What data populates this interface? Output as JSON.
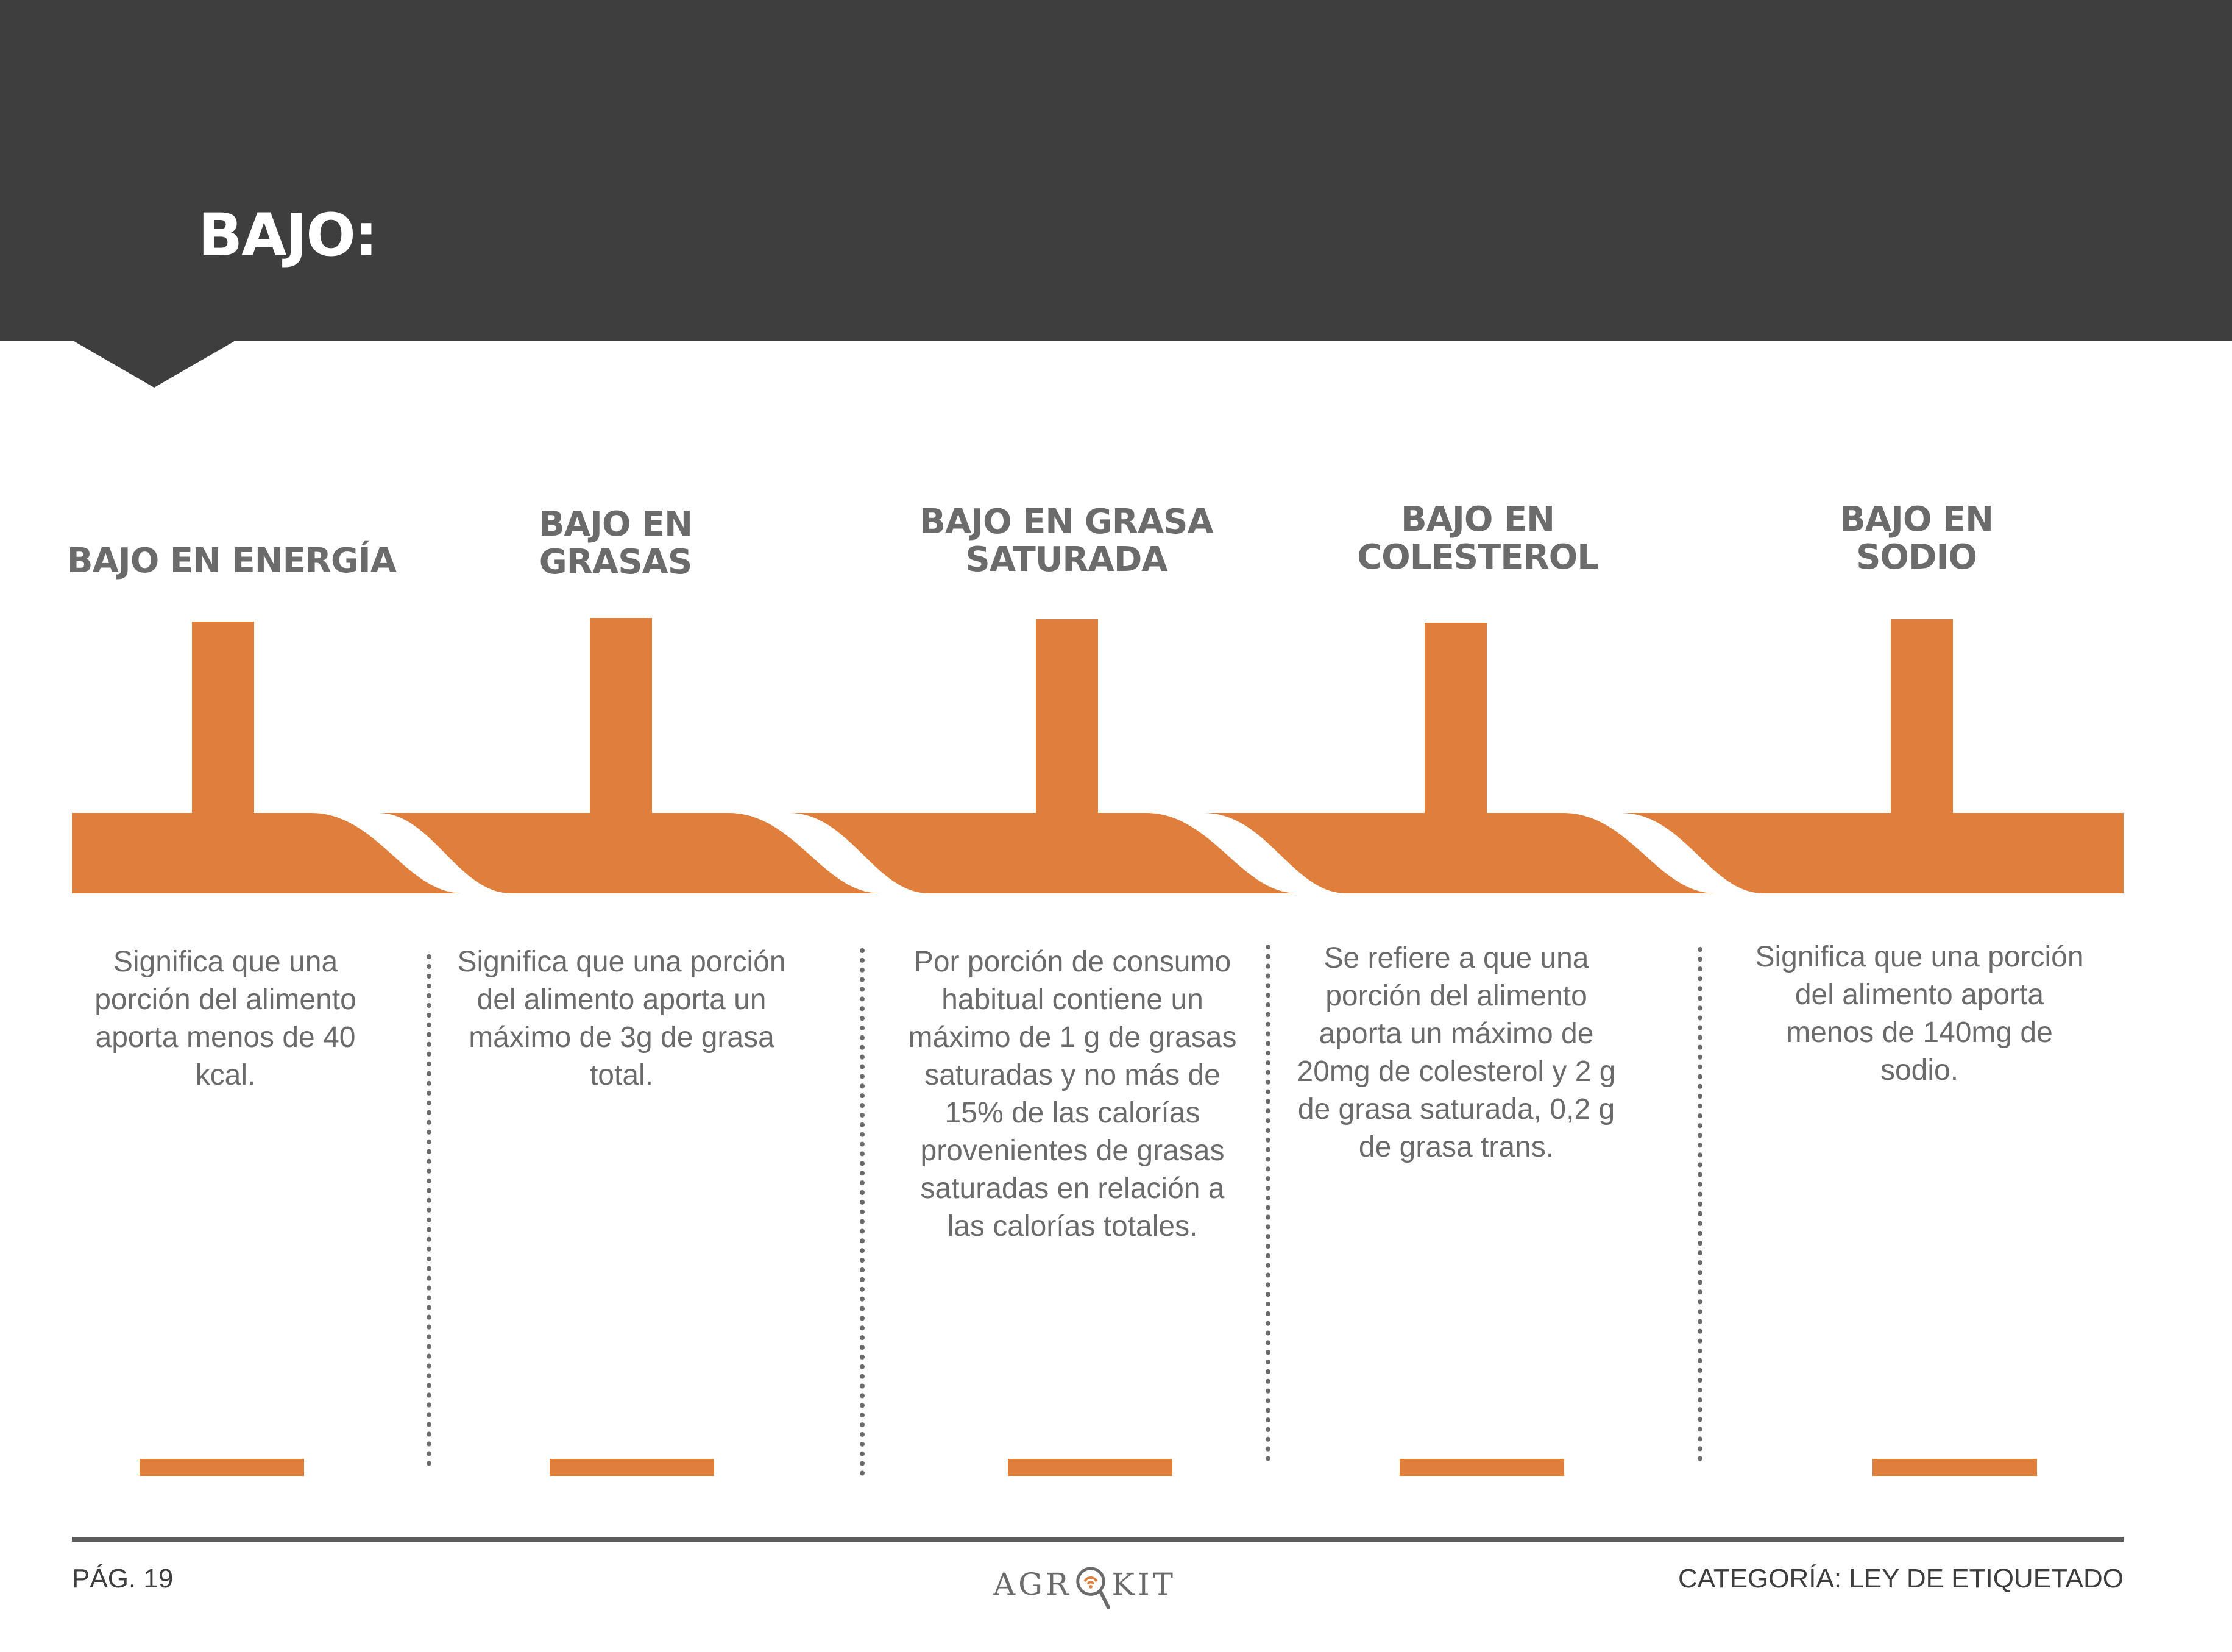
{
  "header": {
    "title": "BAJO:"
  },
  "columns": [
    {
      "title": "BAJO EN ENERGÍA",
      "description": "Significa que una\nporción del alimento\naporta menos de 40\nkcal."
    },
    {
      "title": "BAJO EN\nGRASAS",
      "description": "Significa que una porción\ndel alimento aporta un\nmáximo de 3g de grasa\ntotal."
    },
    {
      "title": "BAJO EN GRASA\nSATURADA",
      "description": "Por porción de consumo\nhabitual contiene un\nmáximo de 1 g de grasas\nsaturadas y no más de\n15% de las calorías\nprovenientes de grasas\nsaturadas en relación a\nlas calorías totales."
    },
    {
      "title": "BAJO EN\nCOLESTEROL",
      "description": "Se refiere a que una\nporción del alimento\naporta un  máximo de\n20mg de colesterol y 2 g\nde grasa saturada, 0,2 g\nde grasa trans."
    },
    {
      "title": "BAJO EN\nSODIO",
      "description": "Significa que una porción\ndel alimento aporta\nmenos de 140mg de\nsodio."
    }
  ],
  "footer": {
    "page": "PÁG. 19",
    "logo_left": "AGR",
    "logo_right": "KIT",
    "category": "CATEGORÍA: LEY DE ETIQUETADO"
  },
  "colors": {
    "header": "#3e3e3e",
    "accent": "#e07e3b",
    "text": "#6b6b6b"
  },
  "icons": {
    "logo_o": "magnifier-wifi-icon"
  }
}
